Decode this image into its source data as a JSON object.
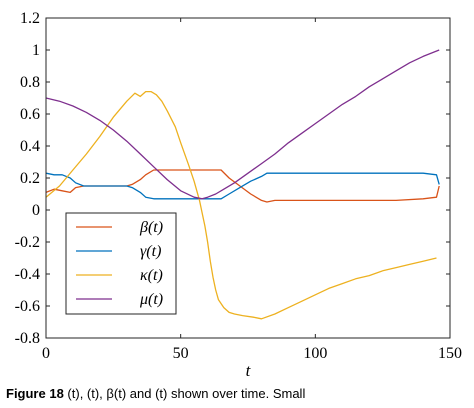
{
  "caption": {
    "label": "Figure 18",
    "text": "(t), (t), β(t) and (t) shown over time. Small"
  },
  "chart_data": {
    "type": "line",
    "xlabel": "t",
    "ylabel": "",
    "title": "",
    "xlim": [
      0,
      150
    ],
    "ylim": [
      -0.8,
      1.2
    ],
    "xticks": [
      "0",
      "50",
      "100",
      "150"
    ],
    "yticks": [
      "-0.8",
      "-0.6",
      "-0.4",
      "-0.2",
      "0",
      "0.2",
      "0.4",
      "0.6",
      "0.8",
      "1",
      "1.2"
    ],
    "legend": "inside-lower-left",
    "series": [
      {
        "name": "β(t)",
        "color": "#d95319",
        "x": [
          0,
          3,
          6,
          9,
          11,
          14,
          20,
          25,
          30,
          32,
          35,
          37,
          40,
          45,
          50,
          55,
          60,
          63,
          65,
          68,
          72,
          76,
          80,
          82,
          85,
          90,
          100,
          110,
          120,
          130,
          140,
          145,
          146
        ],
        "y": [
          0.11,
          0.13,
          0.12,
          0.11,
          0.14,
          0.15,
          0.15,
          0.15,
          0.15,
          0.16,
          0.19,
          0.22,
          0.25,
          0.25,
          0.25,
          0.25,
          0.25,
          0.25,
          0.25,
          0.2,
          0.15,
          0.1,
          0.06,
          0.05,
          0.06,
          0.06,
          0.06,
          0.06,
          0.06,
          0.06,
          0.07,
          0.08,
          0.15
        ]
      },
      {
        "name": "γ(t)",
        "color": "#0072bd",
        "x": [
          0,
          3,
          6,
          9,
          11,
          14,
          20,
          25,
          30,
          32,
          35,
          37,
          40,
          45,
          50,
          55,
          60,
          63,
          65,
          68,
          72,
          76,
          80,
          82,
          85,
          90,
          100,
          110,
          120,
          130,
          140,
          145,
          146
        ],
        "y": [
          0.23,
          0.22,
          0.22,
          0.2,
          0.17,
          0.15,
          0.15,
          0.15,
          0.15,
          0.14,
          0.11,
          0.08,
          0.07,
          0.07,
          0.07,
          0.07,
          0.07,
          0.07,
          0.07,
          0.1,
          0.14,
          0.18,
          0.21,
          0.23,
          0.23,
          0.23,
          0.23,
          0.23,
          0.23,
          0.23,
          0.23,
          0.22,
          0.16
        ]
      },
      {
        "name": "κ(t)",
        "color": "#edb120",
        "x": [
          0,
          5,
          10,
          15,
          20,
          25,
          30,
          33,
          35,
          37,
          39,
          41,
          43,
          45,
          48,
          50,
          53,
          55,
          57,
          58,
          59,
          60,
          61,
          62,
          63,
          64,
          66,
          68,
          70,
          73,
          77,
          80,
          85,
          90,
          95,
          100,
          105,
          110,
          115,
          120,
          125,
          130,
          135,
          140,
          145
        ],
        "y": [
          0.08,
          0.15,
          0.25,
          0.35,
          0.46,
          0.58,
          0.68,
          0.73,
          0.71,
          0.74,
          0.74,
          0.72,
          0.68,
          0.62,
          0.52,
          0.42,
          0.28,
          0.18,
          0.06,
          -0.02,
          -0.1,
          -0.2,
          -0.32,
          -0.42,
          -0.5,
          -0.56,
          -0.61,
          -0.64,
          -0.65,
          -0.66,
          -0.67,
          -0.68,
          -0.65,
          -0.61,
          -0.57,
          -0.53,
          -0.49,
          -0.46,
          -0.43,
          -0.41,
          -0.38,
          -0.36,
          -0.34,
          -0.32,
          -0.3
        ]
      },
      {
        "name": "μ(t)",
        "color": "#7e2f8e",
        "x": [
          0,
          5,
          10,
          15,
          20,
          25,
          30,
          35,
          40,
          45,
          50,
          55,
          58,
          60,
          63,
          66,
          70,
          75,
          80,
          85,
          90,
          95,
          100,
          105,
          110,
          115,
          120,
          125,
          130,
          135,
          140,
          146
        ],
        "y": [
          0.7,
          0.68,
          0.65,
          0.61,
          0.56,
          0.5,
          0.43,
          0.35,
          0.27,
          0.19,
          0.12,
          0.08,
          0.07,
          0.08,
          0.1,
          0.13,
          0.17,
          0.23,
          0.29,
          0.35,
          0.42,
          0.48,
          0.54,
          0.6,
          0.66,
          0.71,
          0.77,
          0.82,
          0.87,
          0.92,
          0.96,
          1.0
        ]
      }
    ]
  }
}
